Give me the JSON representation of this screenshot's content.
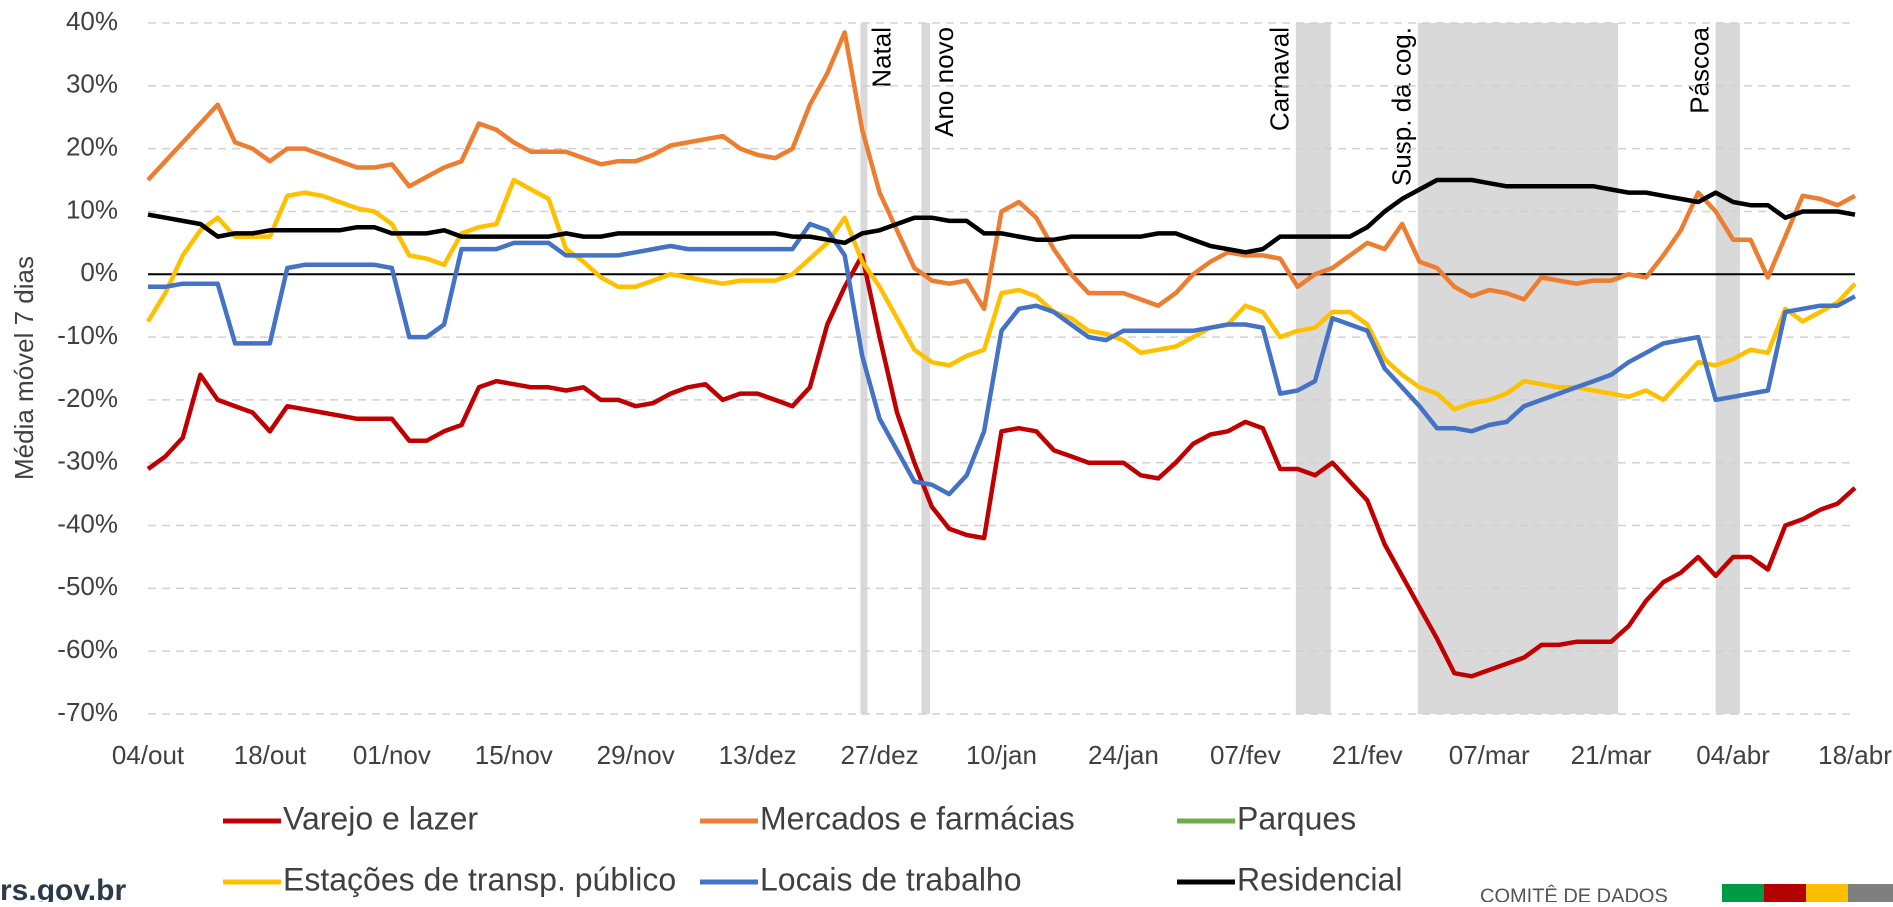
{
  "chart_data": {
    "type": "line",
    "y_label": "Média móvel 7 dias",
    "ylim": [
      -70,
      40
    ],
    "yticks": [
      {
        "value": -70,
        "label": "-70%"
      },
      {
        "value": -60,
        "label": "-60%"
      },
      {
        "value": -50,
        "label": "-50%"
      },
      {
        "value": -40,
        "label": "-40%"
      },
      {
        "value": -30,
        "label": "-30%"
      },
      {
        "value": -20,
        "label": "-20%"
      },
      {
        "value": -10,
        "label": "-10%"
      },
      {
        "value": 0,
        "label": "0%"
      },
      {
        "value": 10,
        "label": "10%"
      },
      {
        "value": 20,
        "label": "20%"
      },
      {
        "value": 30,
        "label": "30%"
      },
      {
        "value": 40,
        "label": "40%"
      }
    ],
    "grid": true,
    "legend": "bottom",
    "categories": [
      "04/out",
      null,
      null,
      null,
      null,
      null,
      null,
      "18/out",
      null,
      null,
      null,
      null,
      null,
      null,
      "01/nov",
      null,
      null,
      null,
      null,
      null,
      null,
      "15/nov",
      null,
      null,
      null,
      null,
      null,
      null,
      "29/nov",
      null,
      null,
      null,
      null,
      null,
      null,
      "13/dez",
      null,
      null,
      null,
      null,
      null,
      null,
      "27/dez",
      null,
      null,
      null,
      null,
      null,
      null,
      "10/jan",
      null,
      null,
      null,
      null,
      null,
      null,
      "24/jan",
      null,
      null,
      null,
      null,
      null,
      null,
      "07/fev",
      null,
      null,
      null,
      null,
      null,
      null,
      "21/fev",
      null,
      null,
      null,
      null,
      null,
      null,
      "07/mar",
      null,
      null,
      null,
      null,
      null,
      null,
      "21/mar",
      null,
      null,
      null,
      null,
      null,
      null,
      "04/abr",
      null,
      null,
      null,
      null,
      null,
      null,
      "18/abr"
    ],
    "bands": [
      {
        "label": "Natal",
        "start": 40.9,
        "end": 41.3
      },
      {
        "label": "Ano novo",
        "start": 44.4,
        "end": 44.9
      },
      {
        "label": "Carnaval",
        "start": 65.9,
        "end": 67.9
      },
      {
        "label": "Susp. da cog.",
        "start": 72.9,
        "end": 84.4
      },
      {
        "label": "Páscoa",
        "start": 90.0,
        "end": 91.4
      }
    ],
    "band_color": "#d9d9d9",
    "series": [
      {
        "name": "Varejo e lazer",
        "color": "#c00000",
        "values": [
          -31,
          -29,
          -26,
          -16,
          -20,
          -21,
          -22,
          -25,
          -21,
          -21.5,
          -22,
          -22.5,
          -23,
          -23,
          -23,
          -26.5,
          -26.5,
          -25,
          -24,
          -18,
          -17,
          -17.5,
          -18,
          -18,
          -18.5,
          -18,
          -20,
          -20,
          -21,
          -20.5,
          -19,
          -18,
          -17.5,
          -20,
          -19,
          -19,
          -20,
          -21,
          -18,
          -8,
          -2,
          3,
          -10,
          -22,
          -30,
          -37,
          -40.5,
          -41.5,
          -42,
          -25,
          -24.5,
          -25,
          -28,
          -29,
          -30,
          -30,
          -30,
          -32,
          -32.5,
          -30,
          -27,
          -25.5,
          -25,
          -23.5,
          -24.5,
          -31,
          -31,
          -32,
          -30,
          -33,
          -36,
          -43,
          -48,
          -53,
          -58,
          -63.5,
          -64,
          -63,
          -62,
          -61,
          -59,
          -59,
          -58.5,
          -58.5,
          -58.5,
          -56,
          -52,
          -49,
          -47.5,
          -45,
          -48,
          -45,
          -45,
          -47,
          -40,
          -39,
          -37.5,
          -36.5,
          -34
        ]
      },
      {
        "name": "Mercados e farmácias",
        "color": "#ed7d31",
        "values": [
          15,
          18,
          21,
          24,
          27,
          21,
          20,
          18,
          20,
          20,
          19,
          18,
          17,
          17,
          17.5,
          14,
          15.5,
          17,
          18,
          24,
          23,
          21,
          19.5,
          19.5,
          19.5,
          18.5,
          17.5,
          18,
          18,
          19,
          20.5,
          21,
          21.5,
          22,
          20,
          19,
          18.5,
          20,
          27,
          32,
          38.5,
          23,
          13,
          7,
          1,
          -1,
          -1.5,
          -1,
          -5.5,
          10,
          11.5,
          9,
          4,
          0,
          -3,
          -3,
          -3,
          -4,
          -5,
          -3,
          0,
          2,
          3.5,
          3,
          3,
          2.5,
          -2,
          0,
          1,
          3,
          5,
          4,
          8,
          2,
          1,
          -2,
          -3.5,
          -2.5,
          -3,
          -4,
          -0.5,
          -1,
          -1.5,
          -1,
          -1,
          0,
          -0.5,
          3,
          7,
          13,
          10,
          5.5,
          5.5,
          -0.5,
          6,
          12.5,
          12,
          11,
          12.5
        ]
      },
      {
        "name": "Parques",
        "color": "#70ad47",
        "values": [
          null,
          null,
          null,
          null,
          null,
          null,
          null,
          null,
          null,
          null,
          null,
          null,
          null,
          null,
          null,
          null,
          null,
          null,
          null,
          null,
          null,
          null,
          null,
          null,
          null,
          null,
          null,
          null,
          null,
          null,
          null,
          null,
          null,
          null,
          null,
          null,
          null,
          null,
          null,
          null,
          null,
          null,
          null,
          null,
          null,
          null,
          null,
          null,
          null,
          null,
          null,
          null,
          null,
          null,
          null,
          null,
          null,
          null,
          null,
          null,
          null,
          null,
          null,
          null,
          null,
          null,
          null,
          null,
          null,
          null,
          null,
          null,
          null,
          null,
          null,
          null,
          null,
          null,
          null,
          null,
          null,
          null,
          null,
          null,
          null,
          null,
          null,
          null,
          null,
          null,
          null,
          null,
          null,
          null,
          null,
          null,
          null,
          null,
          null
        ]
      },
      {
        "name": "Estações de transp. público",
        "color": "#ffc000",
        "values": [
          -7.5,
          -3,
          3,
          7,
          9,
          6,
          6,
          6,
          12.5,
          13,
          12.5,
          11.5,
          10.5,
          10,
          8,
          3,
          2.5,
          1.5,
          6.5,
          7.5,
          8,
          15,
          13.5,
          12,
          4,
          2,
          -0.5,
          -2,
          -2,
          -1,
          0,
          -0.5,
          -1,
          -1.5,
          -1,
          -1,
          -1,
          0,
          2.5,
          5,
          9,
          2,
          -2,
          -7,
          -12,
          -14,
          -14.5,
          -13,
          -12,
          -3,
          -2.5,
          -3.5,
          -6,
          -7,
          -9,
          -9.5,
          -10.5,
          -12.5,
          -12,
          -11.5,
          -10,
          -8.5,
          -8,
          -5,
          -6,
          -10,
          -9,
          -8.5,
          -6,
          -6,
          -8,
          -13.5,
          -16,
          -18,
          -19,
          -21.5,
          -20.5,
          -20,
          -19,
          -17,
          -17.5,
          -18,
          -18,
          -18.5,
          -19,
          -19.5,
          -18.5,
          -20,
          -17,
          -14,
          -14.5,
          -13.5,
          -12,
          -12.5,
          -5.5,
          -7.5,
          -6,
          -4.5,
          -1.5
        ]
      },
      {
        "name": "Locais de trabalho",
        "color": "#4472c4",
        "values": [
          -2,
          -2,
          -1.5,
          -1.5,
          -1.5,
          -11,
          -11,
          -11,
          1,
          1.5,
          1.5,
          1.5,
          1.5,
          1.5,
          1,
          -10,
          -10,
          -8,
          4,
          4,
          4,
          5,
          5,
          5,
          3,
          3,
          3,
          3,
          3.5,
          4,
          4.5,
          4,
          4,
          4,
          4,
          4,
          4,
          4,
          8,
          7,
          3,
          -13,
          -23,
          -28,
          -33,
          -33.5,
          -35,
          -32,
          -25,
          -9,
          -5.5,
          -5,
          -6,
          -8,
          -10,
          -10.5,
          -9,
          -9,
          -9,
          -9,
          -9,
          -8.5,
          -8,
          -8,
          -8.5,
          -19,
          -18.5,
          -17,
          -7,
          -8,
          -9,
          -15,
          -18,
          -21,
          -24.5,
          -24.5,
          -25,
          -24,
          -23.5,
          -21,
          -20,
          -19,
          -18,
          -17,
          -16,
          -14,
          -12.5,
          -11,
          -10.5,
          -10,
          -20,
          -19.5,
          -19,
          -18.5,
          -6,
          -5.5,
          -5,
          -5,
          -3.5
        ]
      },
      {
        "name": "Residencial",
        "color": "#000000",
        "values": [
          9.5,
          9,
          8.5,
          8,
          6,
          6.5,
          6.5,
          7,
          7,
          7,
          7,
          7,
          7.5,
          7.5,
          6.5,
          6.5,
          6.5,
          7,
          6,
          6,
          6,
          6,
          6,
          6,
          6.5,
          6,
          6,
          6.5,
          6.5,
          6.5,
          6.5,
          6.5,
          6.5,
          6.5,
          6.5,
          6.5,
          6.5,
          6,
          6,
          5.5,
          5,
          6.5,
          7,
          8,
          9,
          9,
          8.5,
          8.5,
          6.5,
          6.5,
          6,
          5.5,
          5.5,
          6,
          6,
          6,
          6,
          6,
          6.5,
          6.5,
          5.5,
          4.5,
          4,
          3.5,
          4,
          6,
          6,
          6,
          6,
          6,
          7.5,
          10,
          12,
          13.5,
          15,
          15,
          15,
          14.5,
          14,
          14,
          14,
          14,
          14,
          14,
          13.5,
          13,
          13,
          12.5,
          12,
          11.5,
          13,
          11.5,
          11,
          11,
          9,
          10,
          10,
          10,
          9.5
        ]
      }
    ]
  },
  "footer": {
    "site": "rs.gov.br",
    "brand": "COMITÊ DE DADOS"
  }
}
